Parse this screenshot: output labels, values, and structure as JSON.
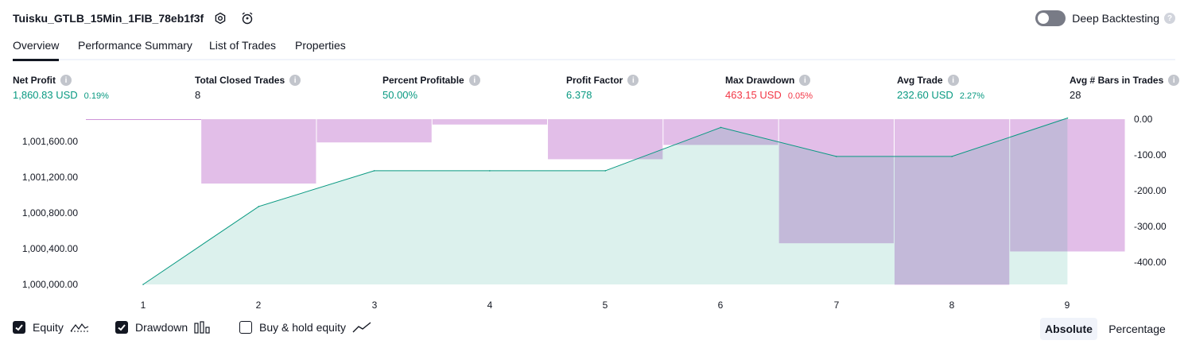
{
  "header": {
    "title": "Tuisku_GTLB_15Min_1FIB_78eb1f3f",
    "settings_icon": "gear-icon",
    "alert_icon": "alarm-clock-icon",
    "deep_backtesting_label": "Deep Backtesting",
    "help_icon": "question-icon",
    "help_glyph": "?"
  },
  "tabs": [
    {
      "label": "Overview",
      "active": true
    },
    {
      "label": "Performance Summary",
      "active": false
    },
    {
      "label": "List of Trades",
      "active": false
    },
    {
      "label": "Properties",
      "active": false
    }
  ],
  "info_glyph": "i",
  "metrics": [
    {
      "label": "Net Profit",
      "value": "1,860.83 USD",
      "sub": "0.19%",
      "color": "#089981"
    },
    {
      "label": "Total Closed Trades",
      "value": "8",
      "sub": "",
      "color": "#131722"
    },
    {
      "label": "Percent Profitable",
      "value": "50.00%",
      "sub": "",
      "color": "#089981"
    },
    {
      "label": "Profit Factor",
      "value": "6.378",
      "sub": "",
      "color": "#089981"
    },
    {
      "label": "Max Drawdown",
      "value": "463.15 USD",
      "sub": "0.05%",
      "color": "#f23645"
    },
    {
      "label": "Avg Trade",
      "value": "232.60 USD",
      "sub": "2.27%",
      "color": "#089981"
    },
    {
      "label": "Avg # Bars in Trades",
      "value": "28",
      "sub": "",
      "color": "#131722"
    }
  ],
  "chart_data": {
    "type": "line",
    "x": [
      1,
      2,
      3,
      4,
      5,
      6,
      7,
      8,
      9
    ],
    "x_tick_labels": [
      "1",
      "2",
      "3",
      "4",
      "5",
      "6",
      "7",
      "8",
      "9"
    ],
    "series": [
      {
        "name": "Equity",
        "type": "area",
        "axis": "left",
        "color": "#089981",
        "values": [
          1000000.0,
          1000872.0,
          1001272.0,
          1001272.0,
          1001272.0,
          1001756.0,
          1001432.0,
          1001432.0,
          1001860.83
        ]
      },
      {
        "name": "Drawdown",
        "type": "bar",
        "axis": "right",
        "color": "#ce93d8",
        "values": [
          0.0,
          -180.0,
          -65.0,
          -15.0,
          -112.0,
          -72.0,
          -347.0,
          -463.15,
          -370.0
        ]
      }
    ],
    "left_axis": {
      "ticks": [
        "1,000,000.00",
        "1,000,400.00",
        "1,000,800.00",
        "1,001,200.00",
        "1,001,600.00"
      ],
      "min": 1000000,
      "max": 1001860.83
    },
    "right_axis": {
      "ticks": [
        "0.00",
        "-100.00",
        "-200.00",
        "-300.00",
        "-400.00"
      ],
      "min": -463.15,
      "max": 0
    },
    "grid": false
  },
  "legend": [
    {
      "label": "Equity",
      "checked": true,
      "icon": "equity-line-icon"
    },
    {
      "label": "Drawdown",
      "checked": true,
      "icon": "drawdown-bars-icon"
    },
    {
      "label": "Buy & hold equity",
      "checked": false,
      "icon": "buy-hold-line-icon"
    }
  ],
  "view_toggle": {
    "absolute": "Absolute",
    "percentage": "Percentage",
    "active": "Absolute"
  }
}
